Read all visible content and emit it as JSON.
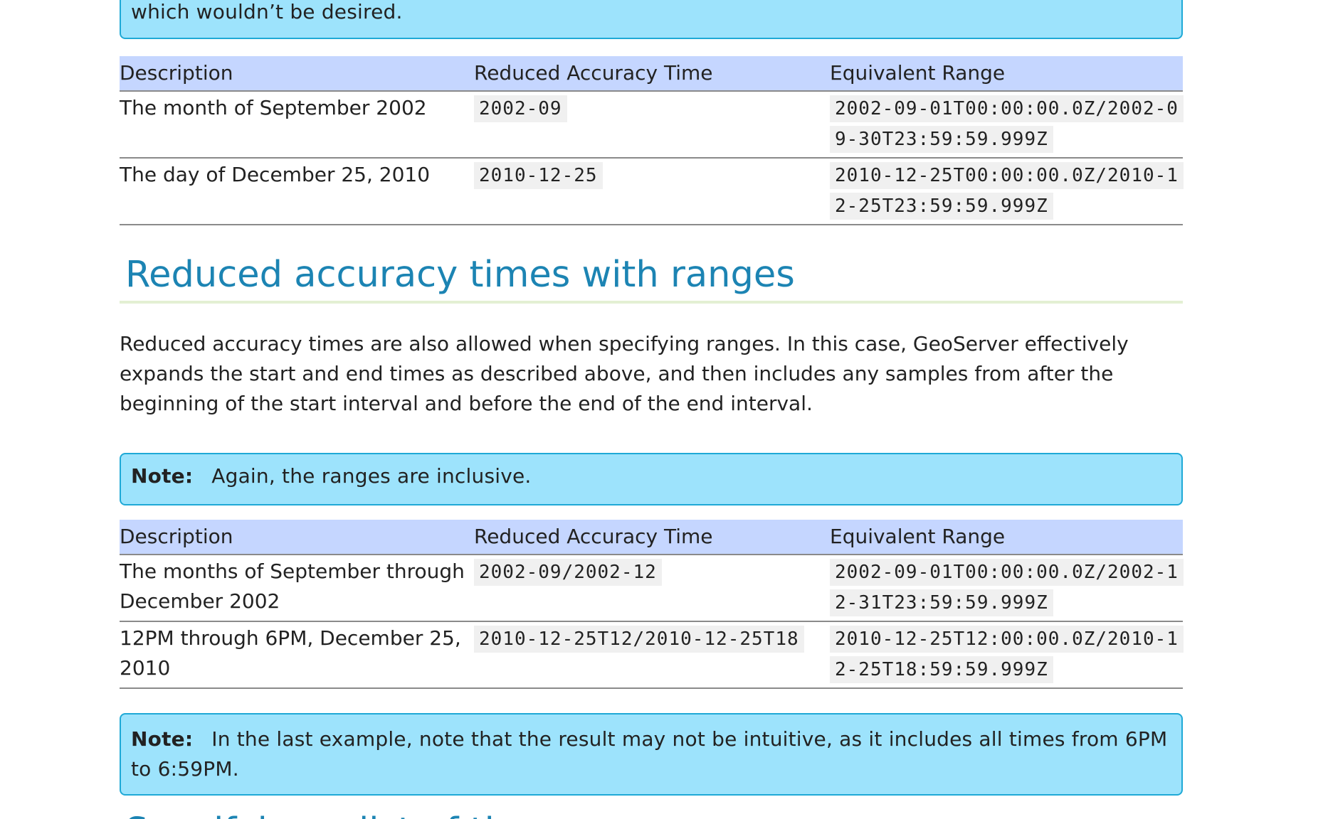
{
  "top_note": {
    "text": "which wouldn’t be desired."
  },
  "table1": {
    "headers": [
      "Description",
      "Reduced Accuracy Time",
      "Equivalent Range"
    ],
    "rows": [
      {
        "description": "The month of September 2002",
        "time": "2002-09",
        "range": "2002-09-01T00:00:00.0Z/2002-09-30T23:59:59.999Z"
      },
      {
        "description": "The day of December 25, 2010",
        "time": "2010-12-25",
        "range": "2010-12-25T00:00:00.0Z/2010-12-25T23:59:59.999Z"
      }
    ]
  },
  "section": {
    "heading": "Reduced accuracy times with ranges",
    "paragraph": "Reduced accuracy times are also allowed when specifying ranges. In this case, GeoServer effectively expands the start and end times as described above, and then includes any samples from after the beginning of the start interval and before the end of the end interval."
  },
  "note1": {
    "label": "Note:",
    "text": "Again, the ranges are inclusive."
  },
  "table2": {
    "headers": [
      "Description",
      "Reduced Accuracy Time",
      "Equivalent Range"
    ],
    "rows": [
      {
        "description": "The months of September through December 2002",
        "time": "2002-09/2002-12",
        "range": "2002-09-01T00:00:00.0Z/2002-12-31T23:59:59.999Z"
      },
      {
        "description": "12PM through 6PM, December 25, 2010",
        "time": "2010-12-25T12/2010-12-25T18",
        "range": "2010-12-25T12:00:00.0Z/2010-12-25T18:59:59.999Z"
      }
    ]
  },
  "note2": {
    "label": "Note:",
    "text": "In the last example, note that the result may not be intuitive, as it includes all times from 6PM to 6:59PM."
  },
  "next_heading": {
    "text": "Specifying a list of times"
  }
}
